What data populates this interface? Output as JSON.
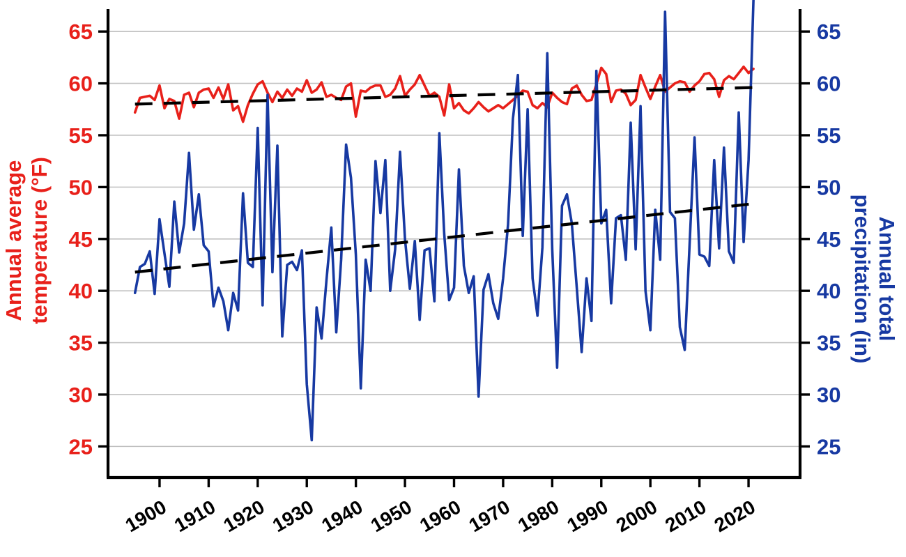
{
  "chart_data": {
    "type": "line",
    "title": "",
    "x_years": [
      1895,
      1896,
      1897,
      1898,
      1899,
      1900,
      1901,
      1902,
      1903,
      1904,
      1905,
      1906,
      1907,
      1908,
      1909,
      1910,
      1911,
      1912,
      1913,
      1914,
      1915,
      1916,
      1917,
      1918,
      1919,
      1920,
      1921,
      1922,
      1923,
      1924,
      1925,
      1926,
      1927,
      1928,
      1929,
      1930,
      1931,
      1932,
      1933,
      1934,
      1935,
      1936,
      1937,
      1938,
      1939,
      1940,
      1941,
      1942,
      1943,
      1944,
      1945,
      1946,
      1947,
      1948,
      1949,
      1950,
      1951,
      1952,
      1953,
      1954,
      1955,
      1956,
      1957,
      1958,
      1959,
      1960,
      1961,
      1962,
      1963,
      1964,
      1965,
      1966,
      1967,
      1968,
      1969,
      1970,
      1971,
      1972,
      1973,
      1974,
      1975,
      1976,
      1977,
      1978,
      1979,
      1980,
      1981,
      1982,
      1983,
      1984,
      1985,
      1986,
      1987,
      1988,
      1989,
      1990,
      1991,
      1992,
      1993,
      1994,
      1995,
      1996,
      1997,
      1998,
      1999,
      2000,
      2001,
      2002,
      2003,
      2004,
      2005,
      2006,
      2007,
      2008,
      2009,
      2010,
      2011,
      2012,
      2013,
      2014,
      2015,
      2016,
      2017,
      2018,
      2019,
      2020,
      2021
    ],
    "series": [
      {
        "name": "Annual average temperature (°F)",
        "axis": "left",
        "color": "#e8201a",
        "values": [
          57.2,
          58.6,
          58.7,
          58.8,
          58.4,
          59.8,
          57.6,
          58.5,
          58.3,
          56.6,
          58.9,
          59.1,
          57.7,
          59.1,
          59.4,
          59.5,
          58.6,
          59.6,
          58.5,
          59.9,
          57.4,
          57.8,
          56.3,
          57.9,
          59.0,
          59.9,
          60.2,
          59.1,
          58.2,
          59.2,
          58.6,
          59.4,
          58.8,
          59.5,
          59.2,
          60.3,
          59.1,
          59.4,
          60.1,
          58.7,
          58.9,
          58.6,
          58.4,
          59.7,
          60.0,
          56.8,
          59.3,
          59.2,
          59.6,
          59.8,
          59.8,
          58.7,
          58.9,
          59.5,
          60.7,
          58.8,
          59.4,
          59.9,
          60.8,
          59.8,
          58.8,
          59.1,
          58.7,
          56.9,
          59.9,
          57.6,
          58.1,
          57.4,
          57.1,
          57.6,
          58.2,
          57.7,
          57.3,
          57.6,
          57.9,
          57.6,
          58.0,
          58.4,
          58.8,
          59.3,
          59.2,
          57.9,
          57.6,
          58.1,
          57.7,
          59.1,
          58.6,
          58.2,
          58.0,
          59.5,
          59.8,
          58.9,
          58.3,
          58.4,
          59.9,
          61.5,
          60.9,
          58.2,
          59.3,
          59.4,
          59.0,
          57.9,
          58.4,
          60.8,
          59.6,
          58.5,
          59.7,
          60.8,
          59.2,
          59.6,
          60.0,
          60.2,
          60.1,
          59.2,
          59.8,
          60.2,
          60.9,
          61.0,
          60.4,
          58.7,
          60.3,
          60.7,
          60.4,
          61.0,
          61.6,
          61.0,
          61.4
        ]
      },
      {
        "name": "Annual total precipitation (in)",
        "axis": "right",
        "color": "#1739a2",
        "values": [
          39.8,
          42.3,
          42.6,
          43.8,
          39.7,
          46.9,
          43.6,
          40.4,
          48.6,
          43.7,
          46.5,
          53.3,
          45.9,
          49.3,
          44.4,
          43.8,
          38.5,
          40.3,
          39.0,
          36.2,
          39.8,
          38.1,
          49.4,
          42.7,
          42.3,
          55.7,
          38.6,
          58.9,
          41.8,
          54.0,
          35.6,
          42.5,
          42.8,
          42.0,
          43.9,
          31.0,
          25.6,
          38.4,
          35.4,
          41.0,
          46.1,
          36.0,
          43.0,
          54.1,
          50.9,
          43.5,
          30.6,
          43.0,
          40.0,
          52.5,
          47.5,
          52.6,
          40.0,
          44.0,
          53.4,
          45.0,
          40.2,
          44.8,
          37.2,
          43.9,
          44.1,
          39.0,
          55.2,
          45.5,
          39.1,
          40.3,
          51.7,
          42.4,
          39.8,
          41.4,
          29.8,
          40.1,
          41.6,
          38.8,
          37.3,
          41.2,
          46.4,
          56.6,
          60.8,
          45.3,
          57.5,
          41.2,
          37.6,
          44.2,
          62.9,
          44.0,
          32.6,
          48.2,
          49.3,
          46.5,
          40.3,
          34.1,
          41.2,
          37.1,
          61.2,
          46.5,
          47.8,
          38.8,
          47.0,
          47.3,
          43.0,
          56.2,
          44.0,
          57.8,
          40.0,
          36.2,
          47.8,
          43.0,
          66.9,
          47.6,
          47.0,
          36.5,
          34.3,
          44.5,
          54.8,
          43.5,
          43.3,
          42.4,
          52.6,
          44.1,
          53.8,
          43.8,
          42.7,
          57.2,
          44.7,
          52.6,
          68.0
        ]
      }
    ],
    "trend_lines": [
      {
        "name": "temperature-trend",
        "color": "#000000",
        "style": "dashed",
        "x_start": 1895,
        "x_end": 2021,
        "y_start": 58.0,
        "y_end": 59.6
      },
      {
        "name": "precipitation-trend",
        "color": "#000000",
        "style": "dashed",
        "x_start": 1895,
        "x_end": 2021,
        "y_start": 41.8,
        "y_end": 48.4
      }
    ],
    "left_axis": {
      "label_line1": "Annual average",
      "label_line2": "temperature (°F)",
      "ticks": [
        25,
        30,
        35,
        40,
        45,
        50,
        55,
        60,
        65
      ],
      "color": "#e8201a",
      "range": [
        22,
        67.5
      ]
    },
    "right_axis": {
      "label_line1": "Annual total",
      "label_line2": "precipitation (in)",
      "ticks": [
        25,
        30,
        35,
        40,
        45,
        50,
        55,
        60,
        65
      ],
      "color": "#1739a2",
      "range": [
        22,
        67.5
      ]
    },
    "x_axis": {
      "ticks": [
        1900,
        1910,
        1920,
        1930,
        1940,
        1950,
        1960,
        1970,
        1980,
        1990,
        2000,
        2010,
        2020
      ],
      "range": [
        1889.5,
        2030.5
      ],
      "color": "#000000"
    },
    "grid": {
      "show": true,
      "color": "#c0c0c0"
    },
    "legend_position": "none"
  }
}
